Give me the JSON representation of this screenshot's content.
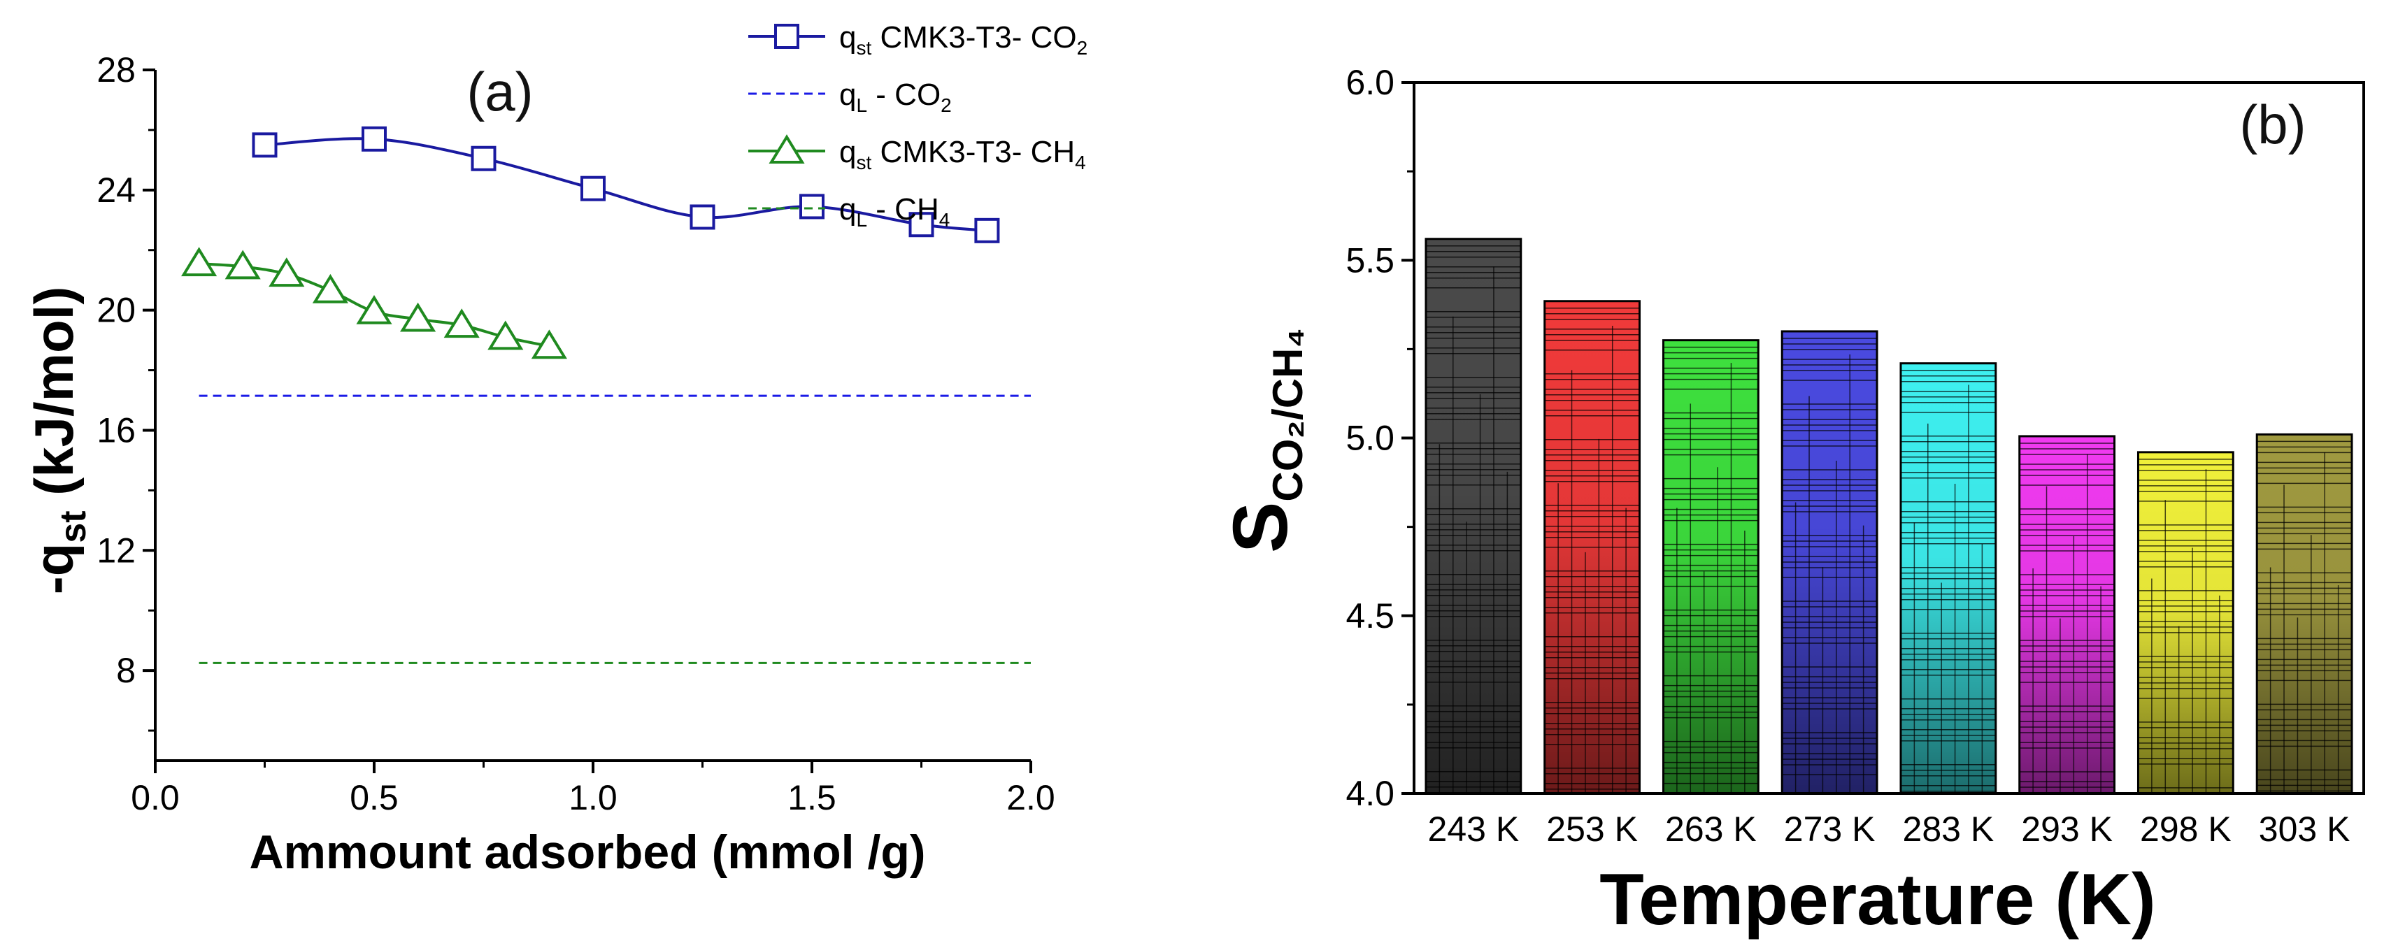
{
  "chart_data": [
    {
      "type": "line",
      "panel_label": "(a)",
      "xlabel": "Ammount adsorbed (mmol /g)",
      "ylabel_main": "-q",
      "ylabel_sub": "st",
      "ylabel_unit": " (kJ/mol)",
      "xlim": [
        0.0,
        2.0
      ],
      "ylim": [
        5,
        28
      ],
      "xticks": [
        0.0,
        0.5,
        1.0,
        1.5,
        2.0
      ],
      "xtick_labels": [
        "0.0",
        "0.5",
        "1.0",
        "1.5",
        "2.0"
      ],
      "yticks": [
        8,
        12,
        16,
        20,
        24,
        28
      ],
      "ytick_labels": [
        "8",
        "12",
        "16",
        "20",
        "24",
        "28"
      ],
      "series": [
        {
          "name": "q_st CMK3-T3- CO2",
          "legend": {
            "q": "q",
            "sub": "st",
            "mid": " CMK3-T3- CO",
            "sub2": "2"
          },
          "color": "#1a1aa0",
          "marker": "square",
          "x": [
            0.25,
            0.5,
            0.75,
            1.0,
            1.25,
            1.5,
            1.75,
            1.9
          ],
          "y": [
            25.5,
            25.7,
            25.05,
            24.05,
            23.1,
            23.45,
            22.85,
            22.65
          ]
        },
        {
          "name": "q_L - CO2",
          "legend": {
            "q": "q",
            "sub": "L",
            "mid": " - CO",
            "sub2": "2"
          },
          "color": "#1a1ae6",
          "style": "dashed",
          "x": [
            0.1,
            2.0
          ],
          "y": [
            17.15,
            17.15
          ]
        },
        {
          "name": "q_st CMK3-T3- CH4",
          "legend": {
            "q": "q",
            "sub": "st",
            "mid": " CMK3-T3- CH",
            "sub2": "4"
          },
          "color": "#1f8a1f",
          "marker": "triangle",
          "x": [
            0.1,
            0.2,
            0.3,
            0.4,
            0.5,
            0.6,
            0.7,
            0.8,
            0.9
          ],
          "y": [
            21.55,
            21.45,
            21.2,
            20.65,
            19.95,
            19.7,
            19.5,
            19.1,
            18.8
          ]
        },
        {
          "name": "q_L - CH4",
          "legend": {
            "q": "q",
            "sub": "L",
            "mid": " - CH",
            "sub2": "4"
          },
          "color": "#1f8a1f",
          "style": "dashed",
          "x": [
            0.1,
            2.0
          ],
          "y": [
            8.25,
            8.25
          ]
        }
      ]
    },
    {
      "type": "bar",
      "panel_label": "(b)",
      "xlabel": "Temperature (K)",
      "ylabel_main": "S",
      "ylabel_sub": "CO₂/CH₄",
      "ylim": [
        4.0,
        6.0
      ],
      "yticks": [
        4.0,
        4.5,
        5.0,
        5.5,
        6.0
      ],
      "ytick_labels": [
        "4.0",
        "4.5",
        "5.0",
        "5.5",
        "6.0"
      ],
      "categories": [
        "243 K",
        "253 K",
        "263 K",
        "273 K",
        "283 K",
        "293 K",
        "298 K",
        "303 K"
      ],
      "values": [
        5.56,
        5.385,
        5.275,
        5.3,
        5.21,
        5.005,
        4.96,
        5.01
      ],
      "colors": [
        "#4a4a4a",
        "#f03a3a",
        "#3ee03e",
        "#4a4ae0",
        "#3ef0f0",
        "#f03af0",
        "#f0f03a",
        "#a09a40"
      ]
    }
  ]
}
